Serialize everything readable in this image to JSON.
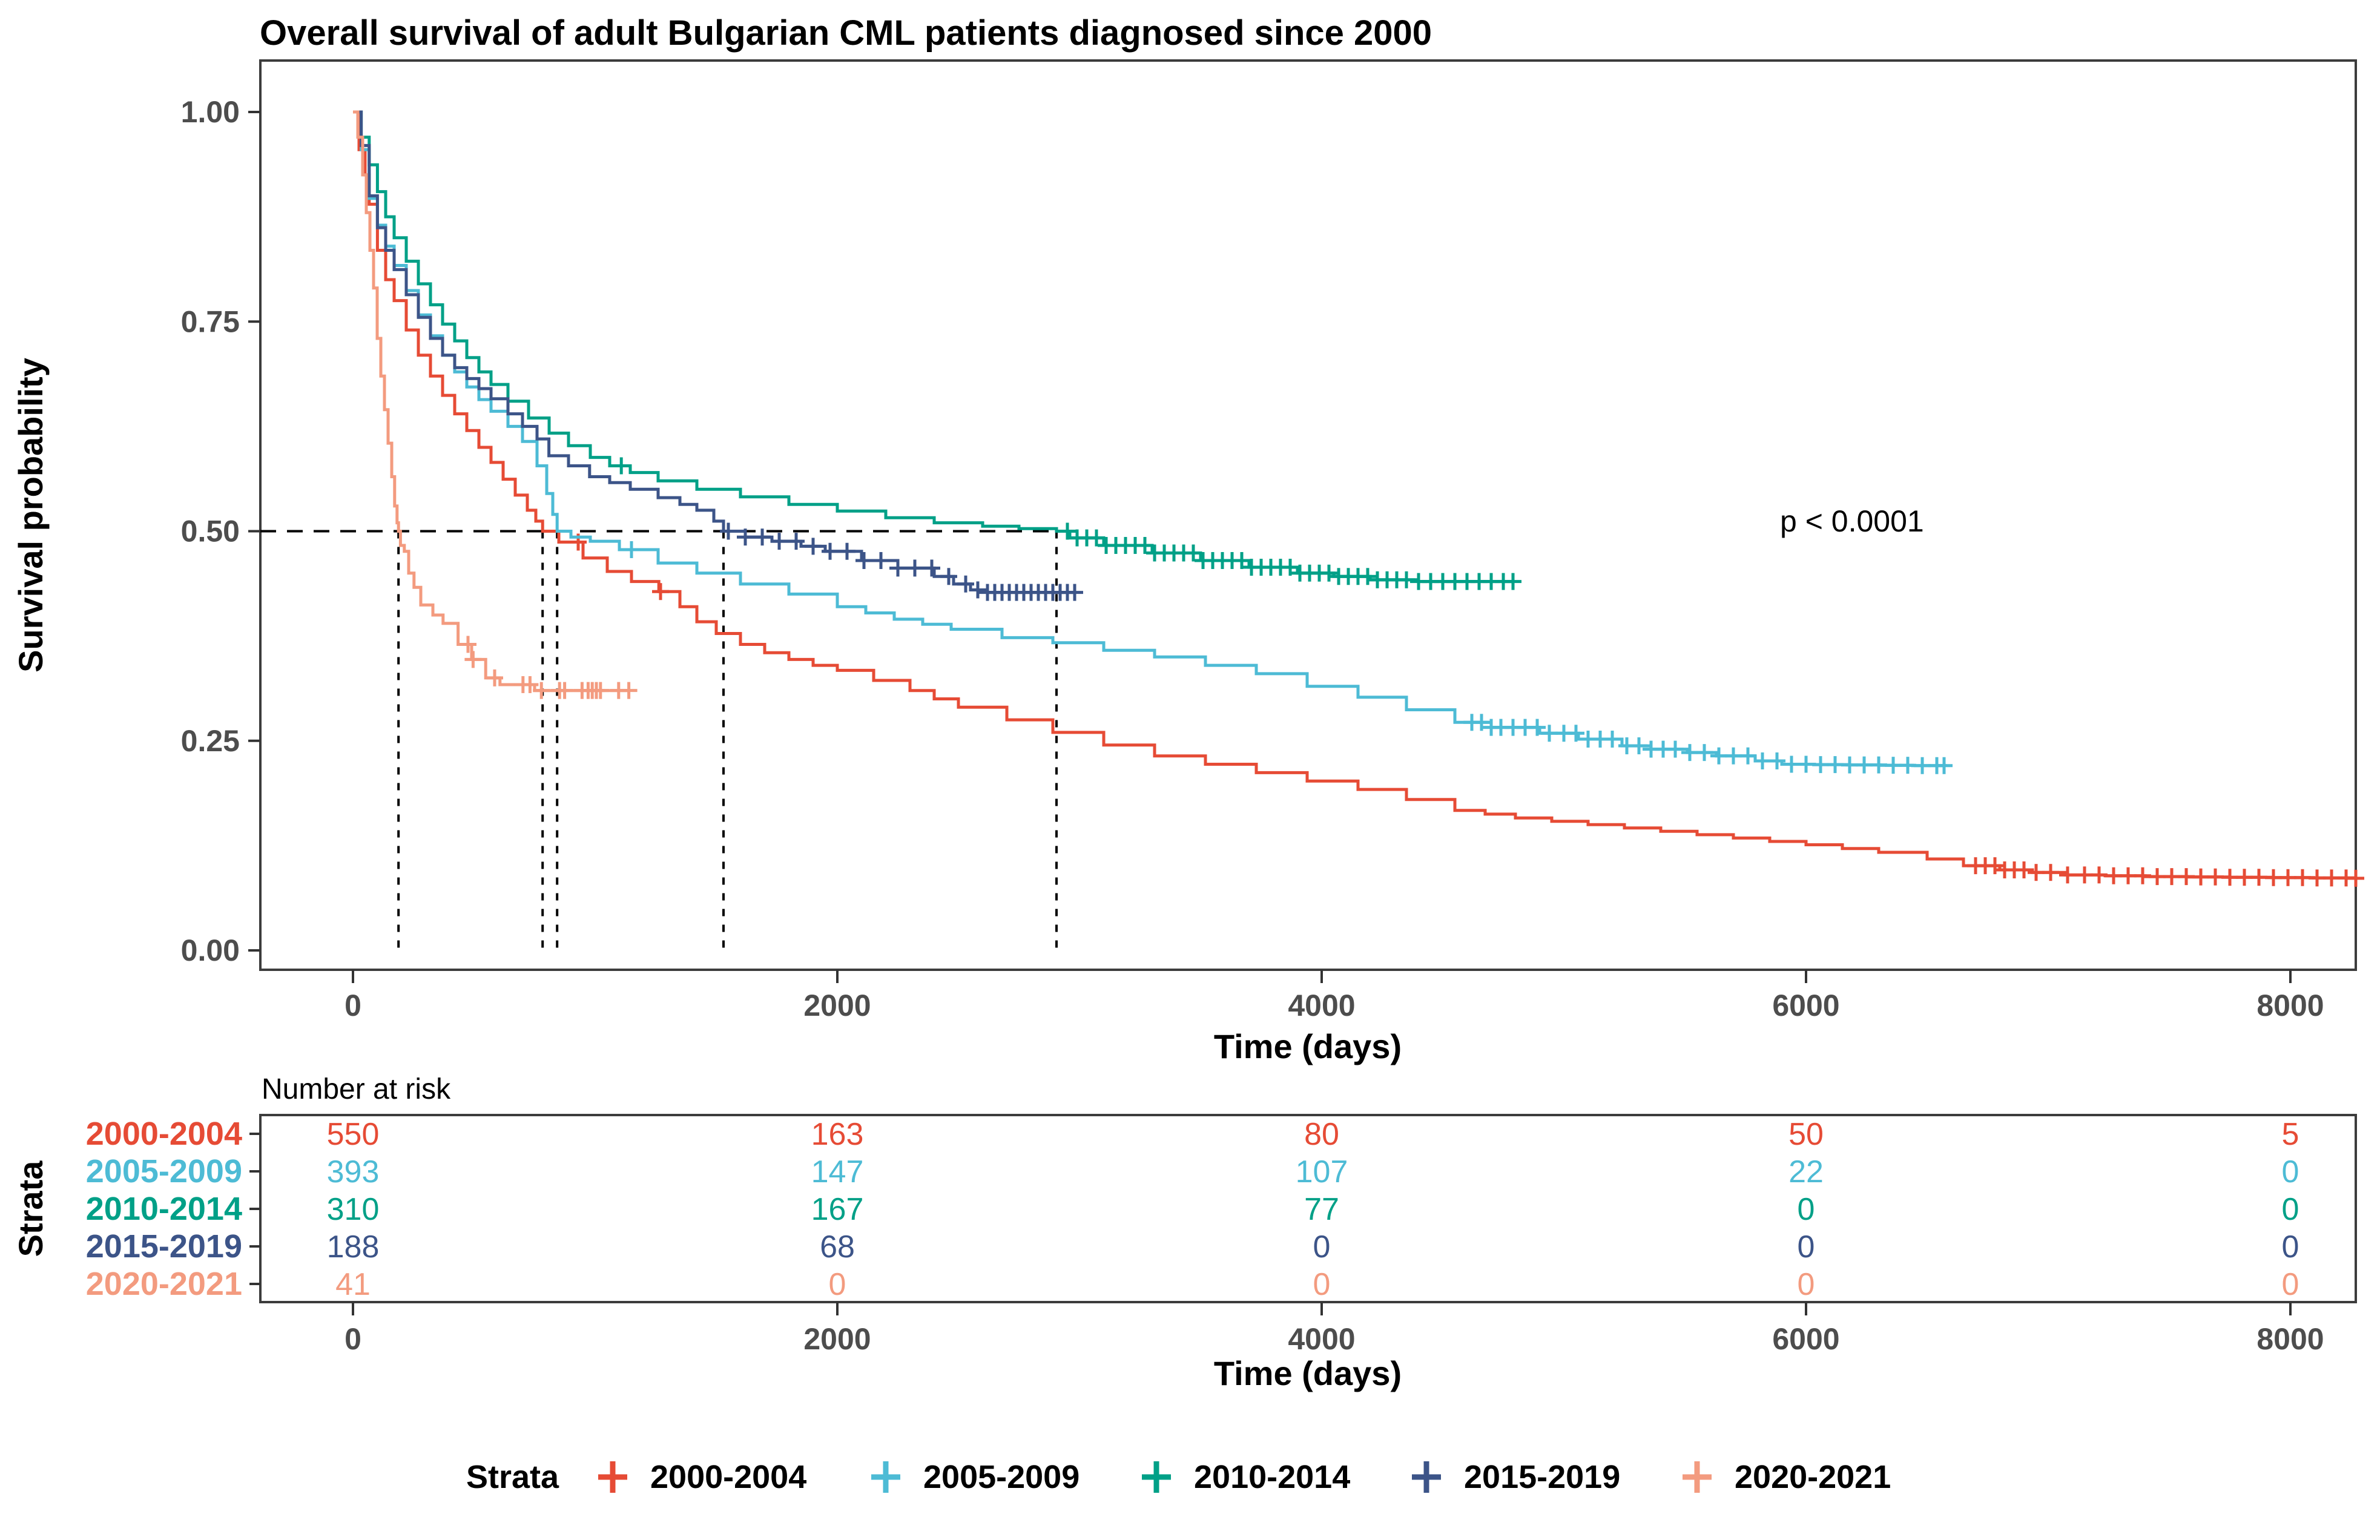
{
  "chart_data": {
    "type": "line",
    "subtype": "kaplan-meier-step",
    "title": "Overall survival of adult Bulgarian CML patients diagnosed since 2000",
    "xlabel": "Time (days)",
    "ylabel": "Survival probability",
    "annotation": "p < 0.0001",
    "legend_title": "Strata",
    "xlim": [
      0,
      8400
    ],
    "ylim": [
      0.0,
      1.0
    ],
    "x_ticks": [
      0,
      2000,
      4000,
      6000,
      8000
    ],
    "y_ticks": [
      "1.00",
      "0.75",
      "0.50",
      "0.25",
      "0.00"
    ],
    "y_tick_values": [
      1.0,
      0.75,
      0.5,
      0.25,
      0.0
    ],
    "grid": false,
    "legend_position": "bottom",
    "median_reference_lines": {
      "horizontal_at": 0.5,
      "style": "dashed"
    },
    "series": [
      {
        "name": "2000-2004",
        "color": "#E64B35",
        "median_days": 783,
        "number_at_risk": [
          550,
          163,
          80,
          50,
          5
        ],
        "points": [
          [
            0,
            1.0
          ],
          [
            25,
            0.955
          ],
          [
            50,
            0.925
          ],
          [
            67,
            0.89
          ],
          [
            101,
            0.835
          ],
          [
            135,
            0.8
          ],
          [
            170,
            0.775
          ],
          [
            220,
            0.74
          ],
          [
            270,
            0.71
          ],
          [
            320,
            0.685
          ],
          [
            370,
            0.662
          ],
          [
            420,
            0.64
          ],
          [
            470,
            0.62
          ],
          [
            520,
            0.6
          ],
          [
            570,
            0.582
          ],
          [
            620,
            0.562
          ],
          [
            670,
            0.543
          ],
          [
            720,
            0.525
          ],
          [
            755,
            0.512
          ],
          [
            783,
            0.5
          ],
          [
            850,
            0.487
          ],
          [
            950,
            0.468
          ],
          [
            1050,
            0.452
          ],
          [
            1150,
            0.44
          ],
          [
            1263,
            0.428
          ],
          [
            1350,
            0.41
          ],
          [
            1420,
            0.392
          ],
          [
            1500,
            0.378
          ],
          [
            1600,
            0.365
          ],
          [
            1700,
            0.355
          ],
          [
            1800,
            0.347
          ],
          [
            1900,
            0.34
          ],
          [
            2000,
            0.334
          ],
          [
            2150,
            0.322
          ],
          [
            2300,
            0.31
          ],
          [
            2400,
            0.3
          ],
          [
            2500,
            0.29
          ],
          [
            2700,
            0.275
          ],
          [
            2890,
            0.26
          ],
          [
            3100,
            0.245
          ],
          [
            3310,
            0.232
          ],
          [
            3520,
            0.222
          ],
          [
            3730,
            0.212
          ],
          [
            3940,
            0.202
          ],
          [
            4150,
            0.192
          ],
          [
            4350,
            0.18
          ],
          [
            4550,
            0.167
          ],
          [
            4800,
            0.158
          ],
          [
            5100,
            0.15
          ],
          [
            5400,
            0.142
          ],
          [
            5700,
            0.134
          ],
          [
            6000,
            0.126
          ],
          [
            6300,
            0.117
          ],
          [
            6500,
            0.109
          ],
          [
            6650,
            0.101
          ],
          [
            6800,
            0.096
          ],
          [
            7070,
            0.09
          ],
          [
            7400,
            0.088
          ],
          [
            8270,
            0.086
          ]
        ],
        "censor_times": [
          930,
          1270,
          6700,
          6740,
          6780,
          6820,
          6860,
          6900,
          6950,
          7010,
          7080,
          7150,
          7210,
          7270,
          7330,
          7390,
          7450,
          7510,
          7570,
          7630,
          7690,
          7750,
          7810,
          7870,
          7930,
          7990,
          8050,
          8110,
          8170,
          8230,
          8270
        ]
      },
      {
        "name": "2005-2009",
        "color": "#4DBBD5",
        "median_days": 843,
        "number_at_risk": [
          393,
          147,
          107,
          22,
          0
        ],
        "points": [
          [
            0,
            1.0
          ],
          [
            34,
            0.955
          ],
          [
            67,
            0.897
          ],
          [
            101,
            0.865
          ],
          [
            135,
            0.84
          ],
          [
            170,
            0.817
          ],
          [
            220,
            0.787
          ],
          [
            270,
            0.758
          ],
          [
            320,
            0.733
          ],
          [
            370,
            0.71
          ],
          [
            420,
            0.69
          ],
          [
            470,
            0.672
          ],
          [
            520,
            0.657
          ],
          [
            570,
            0.643
          ],
          [
            640,
            0.625
          ],
          [
            700,
            0.607
          ],
          [
            760,
            0.578
          ],
          [
            800,
            0.545
          ],
          [
            825,
            0.52
          ],
          [
            843,
            0.5
          ],
          [
            900,
            0.493
          ],
          [
            980,
            0.488
          ],
          [
            1100,
            0.478
          ],
          [
            1260,
            0.462
          ],
          [
            1420,
            0.45
          ],
          [
            1600,
            0.437
          ],
          [
            1800,
            0.425
          ],
          [
            2000,
            0.41
          ],
          [
            2235,
            0.395
          ],
          [
            2470,
            0.383
          ],
          [
            2680,
            0.373
          ],
          [
            2890,
            0.367
          ],
          [
            3100,
            0.358
          ],
          [
            3310,
            0.35
          ],
          [
            3520,
            0.34
          ],
          [
            3730,
            0.33
          ],
          [
            3940,
            0.315
          ],
          [
            4150,
            0.302
          ],
          [
            4350,
            0.287
          ],
          [
            4550,
            0.272
          ],
          [
            4700,
            0.266
          ],
          [
            4900,
            0.259
          ],
          [
            5060,
            0.252
          ],
          [
            5240,
            0.244
          ],
          [
            5360,
            0.24
          ],
          [
            5510,
            0.236
          ],
          [
            5630,
            0.232
          ],
          [
            5790,
            0.226
          ],
          [
            5900,
            0.222
          ],
          [
            6575,
            0.22
          ]
        ],
        "censor_times": [
          1150,
          4620,
          4660,
          4700,
          4740,
          4790,
          4840,
          4890,
          4940,
          5000,
          5050,
          5100,
          5150,
          5200,
          5260,
          5310,
          5360,
          5410,
          5460,
          5520,
          5580,
          5640,
          5700,
          5760,
          5820,
          5880,
          5940,
          6000,
          6060,
          6120,
          6180,
          6240,
          6300,
          6360,
          6420,
          6480,
          6540,
          6570
        ]
      },
      {
        "name": "2010-2014",
        "color": "#00A087",
        "median_days": 2905,
        "number_at_risk": [
          310,
          167,
          77,
          0,
          0
        ],
        "points": [
          [
            0,
            1.0
          ],
          [
            34,
            0.97
          ],
          [
            67,
            0.937
          ],
          [
            101,
            0.905
          ],
          [
            135,
            0.875
          ],
          [
            170,
            0.85
          ],
          [
            220,
            0.822
          ],
          [
            270,
            0.795
          ],
          [
            320,
            0.77
          ],
          [
            370,
            0.747
          ],
          [
            420,
            0.727
          ],
          [
            470,
            0.707
          ],
          [
            520,
            0.69
          ],
          [
            570,
            0.675
          ],
          [
            640,
            0.655
          ],
          [
            725,
            0.635
          ],
          [
            810,
            0.617
          ],
          [
            890,
            0.602
          ],
          [
            980,
            0.588
          ],
          [
            1060,
            0.578
          ],
          [
            1145,
            0.57
          ],
          [
            1260,
            0.56
          ],
          [
            1420,
            0.55
          ],
          [
            1600,
            0.541
          ],
          [
            1800,
            0.532
          ],
          [
            2000,
            0.524
          ],
          [
            2200,
            0.516
          ],
          [
            2400,
            0.51
          ],
          [
            2600,
            0.506
          ],
          [
            2750,
            0.503
          ],
          [
            2905,
            0.5
          ],
          [
            2960,
            0.492
          ],
          [
            3100,
            0.483
          ],
          [
            3300,
            0.474
          ],
          [
            3500,
            0.465
          ],
          [
            3700,
            0.457
          ],
          [
            3900,
            0.45
          ],
          [
            4050,
            0.446
          ],
          [
            4200,
            0.442
          ],
          [
            4400,
            0.44
          ],
          [
            4790,
            0.44
          ]
        ],
        "censor_times": [
          1108,
          2950,
          2990,
          3030,
          3070,
          3110,
          3150,
          3190,
          3230,
          3270,
          3310,
          3350,
          3390,
          3430,
          3470,
          3510,
          3550,
          3590,
          3630,
          3670,
          3710,
          3750,
          3790,
          3830,
          3870,
          3910,
          3950,
          3990,
          4030,
          4070,
          4110,
          4150,
          4190,
          4230,
          4270,
          4310,
          4350,
          4400,
          4450,
          4500,
          4550,
          4600,
          4650,
          4700,
          4750,
          4790
        ]
      },
      {
        "name": "2015-2019",
        "color": "#3C5488",
        "median_days": 1530,
        "number_at_risk": [
          188,
          68,
          0,
          0,
          0
        ],
        "points": [
          [
            0,
            1.0
          ],
          [
            34,
            0.96
          ],
          [
            67,
            0.9
          ],
          [
            101,
            0.862
          ],
          [
            135,
            0.835
          ],
          [
            170,
            0.812
          ],
          [
            220,
            0.782
          ],
          [
            270,
            0.755
          ],
          [
            320,
            0.73
          ],
          [
            370,
            0.71
          ],
          [
            420,
            0.695
          ],
          [
            470,
            0.682
          ],
          [
            520,
            0.67
          ],
          [
            570,
            0.658
          ],
          [
            640,
            0.64
          ],
          [
            700,
            0.625
          ],
          [
            760,
            0.61
          ],
          [
            809,
            0.59
          ],
          [
            890,
            0.578
          ],
          [
            977,
            0.565
          ],
          [
            1060,
            0.558
          ],
          [
            1145,
            0.55
          ],
          [
            1260,
            0.54
          ],
          [
            1350,
            0.532
          ],
          [
            1420,
            0.525
          ],
          [
            1490,
            0.512
          ],
          [
            1530,
            0.5
          ],
          [
            1620,
            0.493
          ],
          [
            1730,
            0.488
          ],
          [
            1850,
            0.482
          ],
          [
            1950,
            0.476
          ],
          [
            2100,
            0.465
          ],
          [
            2250,
            0.456
          ],
          [
            2400,
            0.446
          ],
          [
            2480,
            0.437
          ],
          [
            2550,
            0.43
          ],
          [
            2620,
            0.427
          ],
          [
            2985,
            0.427
          ]
        ],
        "censor_times": [
          1550,
          1620,
          1690,
          1760,
          1830,
          1900,
          1970,
          2040,
          2110,
          2180,
          2250,
          2320,
          2390,
          2460,
          2530,
          2580,
          2620,
          2650,
          2680,
          2710,
          2740,
          2770,
          2800,
          2830,
          2860,
          2890,
          2920,
          2950,
          2980
        ]
      },
      {
        "name": "2020-2021",
        "color": "#F39B7F",
        "median_days": 188,
        "number_at_risk": [
          41,
          0,
          0,
          0,
          0
        ],
        "points": [
          [
            0,
            1.0
          ],
          [
            20,
            0.97
          ],
          [
            40,
            0.925
          ],
          [
            55,
            0.88
          ],
          [
            70,
            0.835
          ],
          [
            85,
            0.79
          ],
          [
            100,
            0.73
          ],
          [
            115,
            0.685
          ],
          [
            130,
            0.645
          ],
          [
            145,
            0.605
          ],
          [
            160,
            0.565
          ],
          [
            172,
            0.53
          ],
          [
            182,
            0.51
          ],
          [
            188,
            0.5
          ],
          [
            196,
            0.483
          ],
          [
            212,
            0.476
          ],
          [
            230,
            0.45
          ],
          [
            252,
            0.433
          ],
          [
            280,
            0.412
          ],
          [
            330,
            0.4
          ],
          [
            372,
            0.39
          ],
          [
            434,
            0.365
          ],
          [
            490,
            0.347
          ],
          [
            548,
            0.325
          ],
          [
            607,
            0.317
          ],
          [
            750,
            0.31
          ],
          [
            1139,
            0.31
          ]
        ],
        "censor_times": [
          475,
          496,
          585,
          702,
          731,
          778,
          853,
          874,
          946,
          971,
          988,
          1005,
          1022,
          1097,
          1139
        ]
      }
    ],
    "risk_table": {
      "header": "Number at risk",
      "ylabel": "Strata",
      "xlabel": "Time (days)",
      "times": [
        0,
        2000,
        4000,
        6000,
        8000
      ]
    }
  }
}
